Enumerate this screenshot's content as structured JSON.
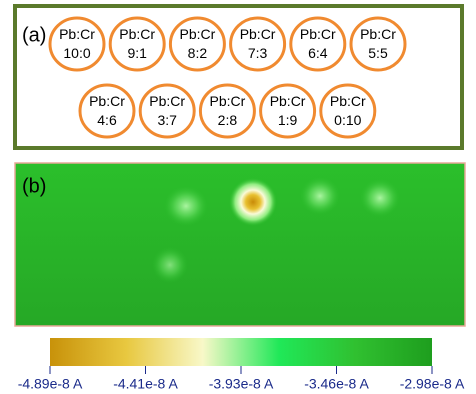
{
  "panel_a": {
    "label": "(a)",
    "rows": [
      [
        "Pb:Cr|10:0",
        "Pb:Cr|9:1",
        "Pb:Cr|8:2",
        "Pb:Cr|7:3",
        "Pb:Cr|6:4",
        "Pb:Cr|5:5"
      ],
      [
        "Pb:Cr|4:6",
        "Pb:Cr|3:7",
        "Pb:Cr|2:8",
        "Pb:Cr|1:9",
        "Pb:Cr|0:10"
      ]
    ]
  },
  "panel_b": {
    "label": "(b)"
  },
  "colorbar": {
    "ticks": [
      "-4.89e-8 A",
      "-4.41e-8 A",
      "-3.93e-8 A",
      "-3.46e-8 A",
      "-2.98e-8 A"
    ]
  }
}
